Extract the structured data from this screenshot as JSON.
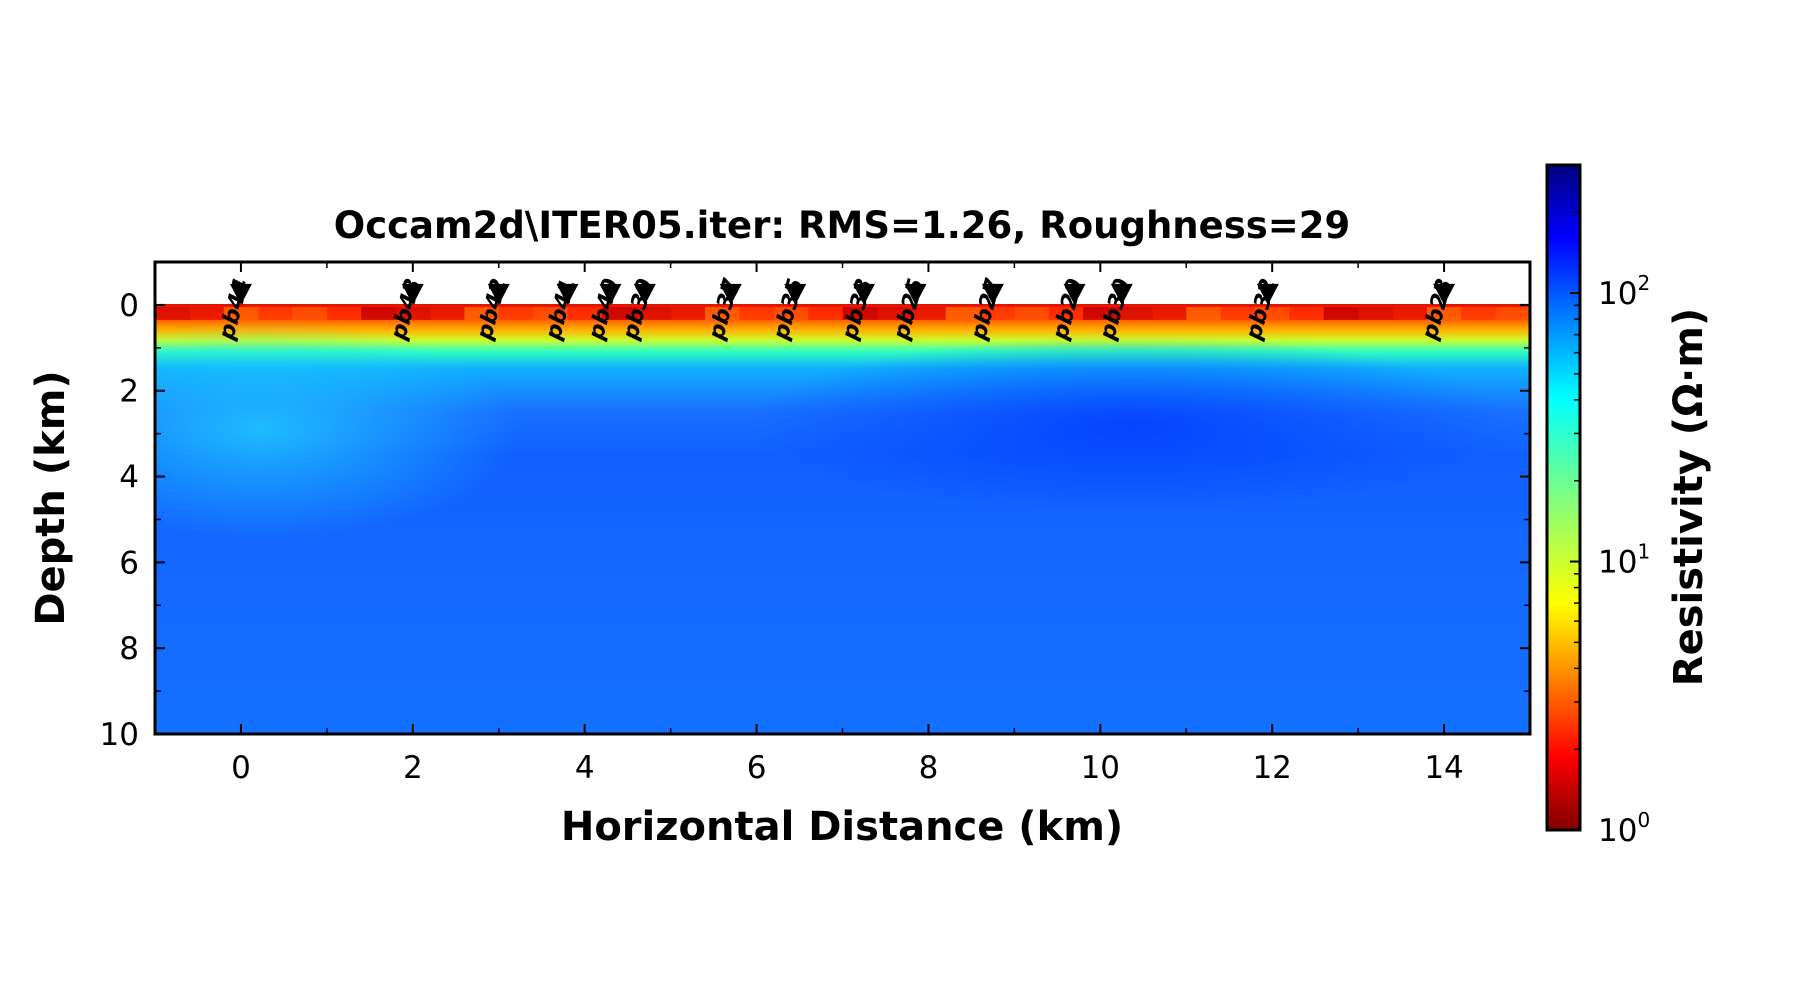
{
  "chart_data": {
    "type": "heatmap",
    "title": "Occam2d\\ITER05.iter: RMS=1.26, Roughness=29",
    "xlabel": "Horizontal Distance (km)",
    "ylabel": "Depth (km)",
    "xlim": [
      -1,
      15
    ],
    "ylim": [
      10,
      -1
    ],
    "x_ticks": [
      "0",
      "2",
      "4",
      "6",
      "8",
      "10",
      "12",
      "14"
    ],
    "y_ticks": [
      "0",
      "2",
      "4",
      "6",
      "8",
      "10"
    ],
    "colorbar": {
      "label": "Resistivity (Ω·m)",
      "scale": "log",
      "colormap": "jet_r",
      "range": [
        1,
        300
      ],
      "ticks": [
        {
          "value": 1,
          "label": "10^0"
        },
        {
          "value": 10,
          "label": "10^1"
        },
        {
          "value": 100,
          "label": "10^2"
        }
      ]
    },
    "stations": [
      {
        "name": "pb44",
        "x": 0.0
      },
      {
        "name": "pb43",
        "x": 2.0
      },
      {
        "name": "pb42",
        "x": 3.0
      },
      {
        "name": "pb41",
        "x": 3.8
      },
      {
        "name": "pb40",
        "x": 4.3
      },
      {
        "name": "pb39",
        "x": 4.7
      },
      {
        "name": "pb37",
        "x": 5.7
      },
      {
        "name": "pb35",
        "x": 6.45
      },
      {
        "name": "pb33",
        "x": 7.25
      },
      {
        "name": "pb25",
        "x": 7.85
      },
      {
        "name": "pb27",
        "x": 8.75
      },
      {
        "name": "pb29",
        "x": 9.7
      },
      {
        "name": "pb30",
        "x": 10.25
      },
      {
        "name": "pb32",
        "x": 11.95
      },
      {
        "name": "pb23",
        "x": 14.0
      }
    ],
    "depth_profile": [
      {
        "depth": 0.0,
        "resistivity": 2
      },
      {
        "depth": 0.3,
        "resistivity": 3
      },
      {
        "depth": 0.55,
        "resistivity": 8
      },
      {
        "depth": 0.8,
        "resistivity": 25
      },
      {
        "depth": 1.2,
        "resistivity": 60
      },
      {
        "depth": 2.0,
        "resistivity": 110
      },
      {
        "depth": 3.0,
        "resistivity": 130
      },
      {
        "depth": 5.0,
        "resistivity": 120
      },
      {
        "depth": 10.0,
        "resistivity": 125
      }
    ]
  }
}
